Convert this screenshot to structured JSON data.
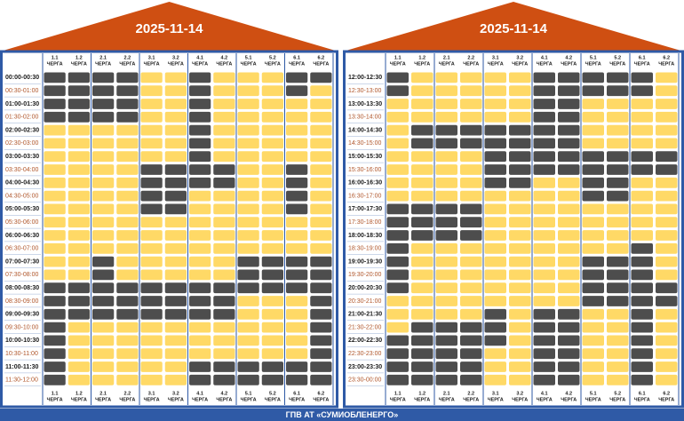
{
  "queues": [
    "1.1",
    "1.2",
    "2.1",
    "2.2",
    "3.1",
    "3.2",
    "4.1",
    "4.2",
    "5.1",
    "5.2",
    "6.1",
    "6.2"
  ],
  "queue_word": "ЧЕРГА",
  "footer": "ГПВ АТ «СУМИОБЛЕНЕРГО»",
  "colors": {
    "outage": "#4d4d4d",
    "power": "#ffd966"
  },
  "panels": [
    {
      "date": "2025-11-14",
      "times": [
        "00:00-00:30",
        "00:30-01:00",
        "01:00-01:30",
        "01:30-02:00",
        "02:00-02:30",
        "02:30-03:00",
        "03:00-03:30",
        "03:30-04:00",
        "04:00-04:30",
        "04:30-05:00",
        "05:00-05:30",
        "05:30-06:00",
        "06:00-06:30",
        "06:30-07:00",
        "07:00-07:30",
        "07:30-08:00",
        "08:00-08:30",
        "08:30-09:00",
        "09:00-09:30",
        "09:30-10:00",
        "10:00-10:30",
        "10:30-11:00",
        "11:00-11:30",
        "11:30-12:00"
      ],
      "grid": [
        [
          1,
          1,
          1,
          1,
          0,
          0,
          1,
          0,
          0,
          0,
          1,
          1
        ],
        [
          1,
          1,
          1,
          1,
          0,
          0,
          1,
          0,
          0,
          0,
          1,
          0
        ],
        [
          1,
          1,
          1,
          1,
          0,
          0,
          1,
          0,
          0,
          0,
          0,
          0
        ],
        [
          1,
          1,
          1,
          1,
          0,
          0,
          1,
          0,
          0,
          0,
          0,
          0
        ],
        [
          0,
          0,
          0,
          0,
          0,
          0,
          1,
          0,
          0,
          0,
          0,
          0
        ],
        [
          0,
          0,
          0,
          0,
          0,
          0,
          1,
          0,
          0,
          0,
          0,
          0
        ],
        [
          0,
          0,
          0,
          0,
          0,
          0,
          1,
          0,
          0,
          0,
          0,
          0
        ],
        [
          0,
          0,
          0,
          0,
          1,
          1,
          1,
          1,
          0,
          0,
          1,
          0
        ],
        [
          0,
          0,
          0,
          0,
          1,
          1,
          1,
          1,
          0,
          0,
          1,
          0
        ],
        [
          0,
          0,
          0,
          0,
          1,
          1,
          0,
          0,
          0,
          0,
          1,
          0
        ],
        [
          0,
          0,
          0,
          0,
          1,
          1,
          0,
          0,
          0,
          0,
          1,
          0
        ],
        [
          0,
          0,
          0,
          0,
          0,
          0,
          0,
          0,
          0,
          0,
          0,
          0
        ],
        [
          0,
          0,
          0,
          0,
          0,
          0,
          0,
          0,
          0,
          0,
          0,
          0
        ],
        [
          0,
          0,
          0,
          0,
          0,
          0,
          0,
          0,
          0,
          0,
          0,
          0
        ],
        [
          0,
          0,
          1,
          0,
          0,
          0,
          0,
          0,
          1,
          1,
          1,
          1
        ],
        [
          0,
          0,
          1,
          0,
          0,
          0,
          0,
          0,
          1,
          1,
          1,
          1
        ],
        [
          1,
          1,
          1,
          1,
          1,
          1,
          1,
          1,
          1,
          1,
          1,
          1
        ],
        [
          1,
          1,
          1,
          1,
          1,
          1,
          1,
          1,
          0,
          0,
          0,
          1
        ],
        [
          1,
          1,
          1,
          1,
          1,
          1,
          1,
          1,
          0,
          0,
          0,
          1
        ],
        [
          1,
          0,
          0,
          0,
          0,
          0,
          0,
          0,
          0,
          0,
          0,
          1
        ],
        [
          1,
          0,
          0,
          0,
          0,
          0,
          0,
          0,
          0,
          0,
          0,
          1
        ],
        [
          1,
          0,
          0,
          0,
          0,
          0,
          0,
          0,
          0,
          0,
          0,
          1
        ],
        [
          1,
          0,
          0,
          0,
          0,
          0,
          1,
          1,
          1,
          1,
          1,
          1
        ],
        [
          1,
          0,
          0,
          0,
          0,
          0,
          1,
          1,
          1,
          1,
          1,
          1
        ]
      ]
    },
    {
      "date": "2025-11-14",
      "times": [
        "12:00-12:30",
        "12:30-13:00",
        "13:00-13:30",
        "13:30-14:00",
        "14:00-14:30",
        "14:30-15:00",
        "15:00-15:30",
        "15:30-16:00",
        "16:00-16:30",
        "16:30-17:00",
        "17:00-17:30",
        "17:30-18:00",
        "18:00-18:30",
        "18:30-19:00",
        "19:00-19:30",
        "19:30-20:00",
        "20:00-20:30",
        "20:30-21:00",
        "21:00-21:30",
        "21:30-22:00",
        "22:00-22:30",
        "22:30-23:00",
        "23:00-23:30",
        "23:30-00:00"
      ],
      "grid": [
        [
          1,
          0,
          0,
          0,
          0,
          0,
          1,
          1,
          1,
          1,
          1,
          0
        ],
        [
          1,
          0,
          0,
          0,
          0,
          0,
          1,
          1,
          1,
          1,
          1,
          0
        ],
        [
          0,
          0,
          0,
          0,
          0,
          0,
          1,
          1,
          0,
          0,
          0,
          0
        ],
        [
          0,
          0,
          0,
          0,
          0,
          0,
          1,
          1,
          0,
          0,
          0,
          0
        ],
        [
          0,
          1,
          1,
          1,
          1,
          1,
          1,
          1,
          0,
          0,
          0,
          0
        ],
        [
          0,
          1,
          1,
          1,
          1,
          1,
          1,
          1,
          0,
          0,
          0,
          0
        ],
        [
          0,
          0,
          0,
          0,
          1,
          1,
          1,
          1,
          1,
          1,
          1,
          1
        ],
        [
          0,
          0,
          0,
          0,
          1,
          1,
          1,
          1,
          1,
          1,
          1,
          1
        ],
        [
          0,
          0,
          0,
          0,
          1,
          1,
          0,
          0,
          1,
          1,
          0,
          0
        ],
        [
          0,
          0,
          0,
          0,
          0,
          0,
          0,
          0,
          1,
          1,
          0,
          0
        ],
        [
          1,
          1,
          1,
          1,
          0,
          0,
          0,
          0,
          0,
          0,
          0,
          0
        ],
        [
          1,
          1,
          1,
          1,
          0,
          0,
          0,
          0,
          0,
          0,
          0,
          0
        ],
        [
          1,
          1,
          1,
          1,
          0,
          0,
          0,
          0,
          0,
          0,
          0,
          0
        ],
        [
          1,
          0,
          0,
          0,
          0,
          0,
          0,
          0,
          0,
          0,
          1,
          0
        ],
        [
          1,
          0,
          0,
          0,
          0,
          0,
          0,
          0,
          1,
          1,
          1,
          0
        ],
        [
          1,
          0,
          0,
          0,
          0,
          0,
          0,
          0,
          1,
          1,
          1,
          0
        ],
        [
          1,
          0,
          0,
          0,
          0,
          0,
          0,
          0,
          1,
          1,
          1,
          1
        ],
        [
          0,
          0,
          0,
          0,
          0,
          0,
          0,
          0,
          1,
          1,
          1,
          1
        ],
        [
          0,
          0,
          0,
          0,
          1,
          0,
          1,
          1,
          0,
          0,
          1,
          0
        ],
        [
          0,
          1,
          1,
          1,
          1,
          0,
          1,
          1,
          0,
          0,
          1,
          0
        ],
        [
          1,
          1,
          1,
          1,
          1,
          0,
          1,
          1,
          0,
          0,
          1,
          0
        ],
        [
          1,
          1,
          1,
          1,
          0,
          0,
          1,
          1,
          0,
          0,
          1,
          0
        ],
        [
          1,
          1,
          1,
          1,
          0,
          0,
          1,
          1,
          0,
          0,
          1,
          0
        ],
        [
          1,
          1,
          1,
          1,
          0,
          0,
          1,
          1,
          0,
          0,
          1,
          0
        ]
      ]
    }
  ]
}
